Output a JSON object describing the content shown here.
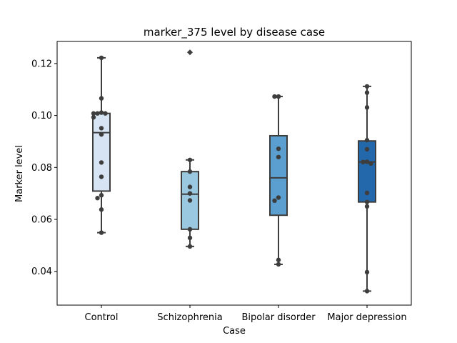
{
  "chart_data": {
    "type": "box",
    "title": "marker_375 level by disease case",
    "xlabel": "Case",
    "ylabel": "Marker level",
    "ylim": [
      0.027,
      0.1285
    ],
    "yticks": [
      0.04,
      0.06,
      0.08,
      0.1,
      0.12
    ],
    "ytick_labels": [
      "0.04",
      "0.06",
      "0.08",
      "0.10",
      "0.12"
    ],
    "grid": false,
    "categories": [
      "Control",
      "Schizophrenia",
      "Bipolar disorder",
      "Major depression"
    ],
    "boxes": [
      {
        "name": "Control",
        "color": "#d6e4f3",
        "whisker_low": 0.0549,
        "q1": 0.0709,
        "median": 0.0934,
        "q3": 0.1008,
        "whisker_high": 0.1222,
        "outliers": []
      },
      {
        "name": "Schizophrenia",
        "color": "#9ac8e0",
        "whisker_low": 0.0496,
        "q1": 0.0562,
        "median": 0.0697,
        "q3": 0.0784,
        "whisker_high": 0.0829,
        "outliers": [
          0.1243
        ]
      },
      {
        "name": "Bipolar disorder",
        "color": "#5a9fcf",
        "whisker_low": 0.0427,
        "q1": 0.0616,
        "median": 0.076,
        "q3": 0.0922,
        "whisker_high": 0.1073,
        "outliers": []
      },
      {
        "name": "Major depression",
        "color": "#2468ac",
        "whisker_low": 0.0324,
        "q1": 0.0667,
        "median": 0.0821,
        "q3": 0.0902,
        "whisker_high": 0.1112,
        "outliers": []
      }
    ],
    "points": [
      {
        "case": "Control",
        "y": [
          0.1222,
          0.1066,
          0.1011,
          0.1008,
          0.1008,
          0.1008,
          0.0993,
          0.0951,
          0.0927,
          0.0819,
          0.0764,
          0.0693,
          0.0682,
          0.0638,
          0.0549
        ]
      },
      {
        "case": "Schizophrenia",
        "y": [
          0.0829,
          0.0784,
          0.0725,
          0.07,
          0.0673,
          0.0562,
          0.0529,
          0.0496
        ]
      },
      {
        "case": "Bipolar disorder",
        "y": [
          0.1073,
          0.1073,
          0.0872,
          0.084,
          0.0684,
          0.0672,
          0.0444,
          0.0427
        ]
      },
      {
        "case": "Major depression",
        "y": [
          0.1112,
          0.1088,
          0.1031,
          0.0905,
          0.087,
          0.0822,
          0.0821,
          0.0815,
          0.0702,
          0.0667,
          0.065,
          0.0397,
          0.0324
        ]
      }
    ]
  }
}
